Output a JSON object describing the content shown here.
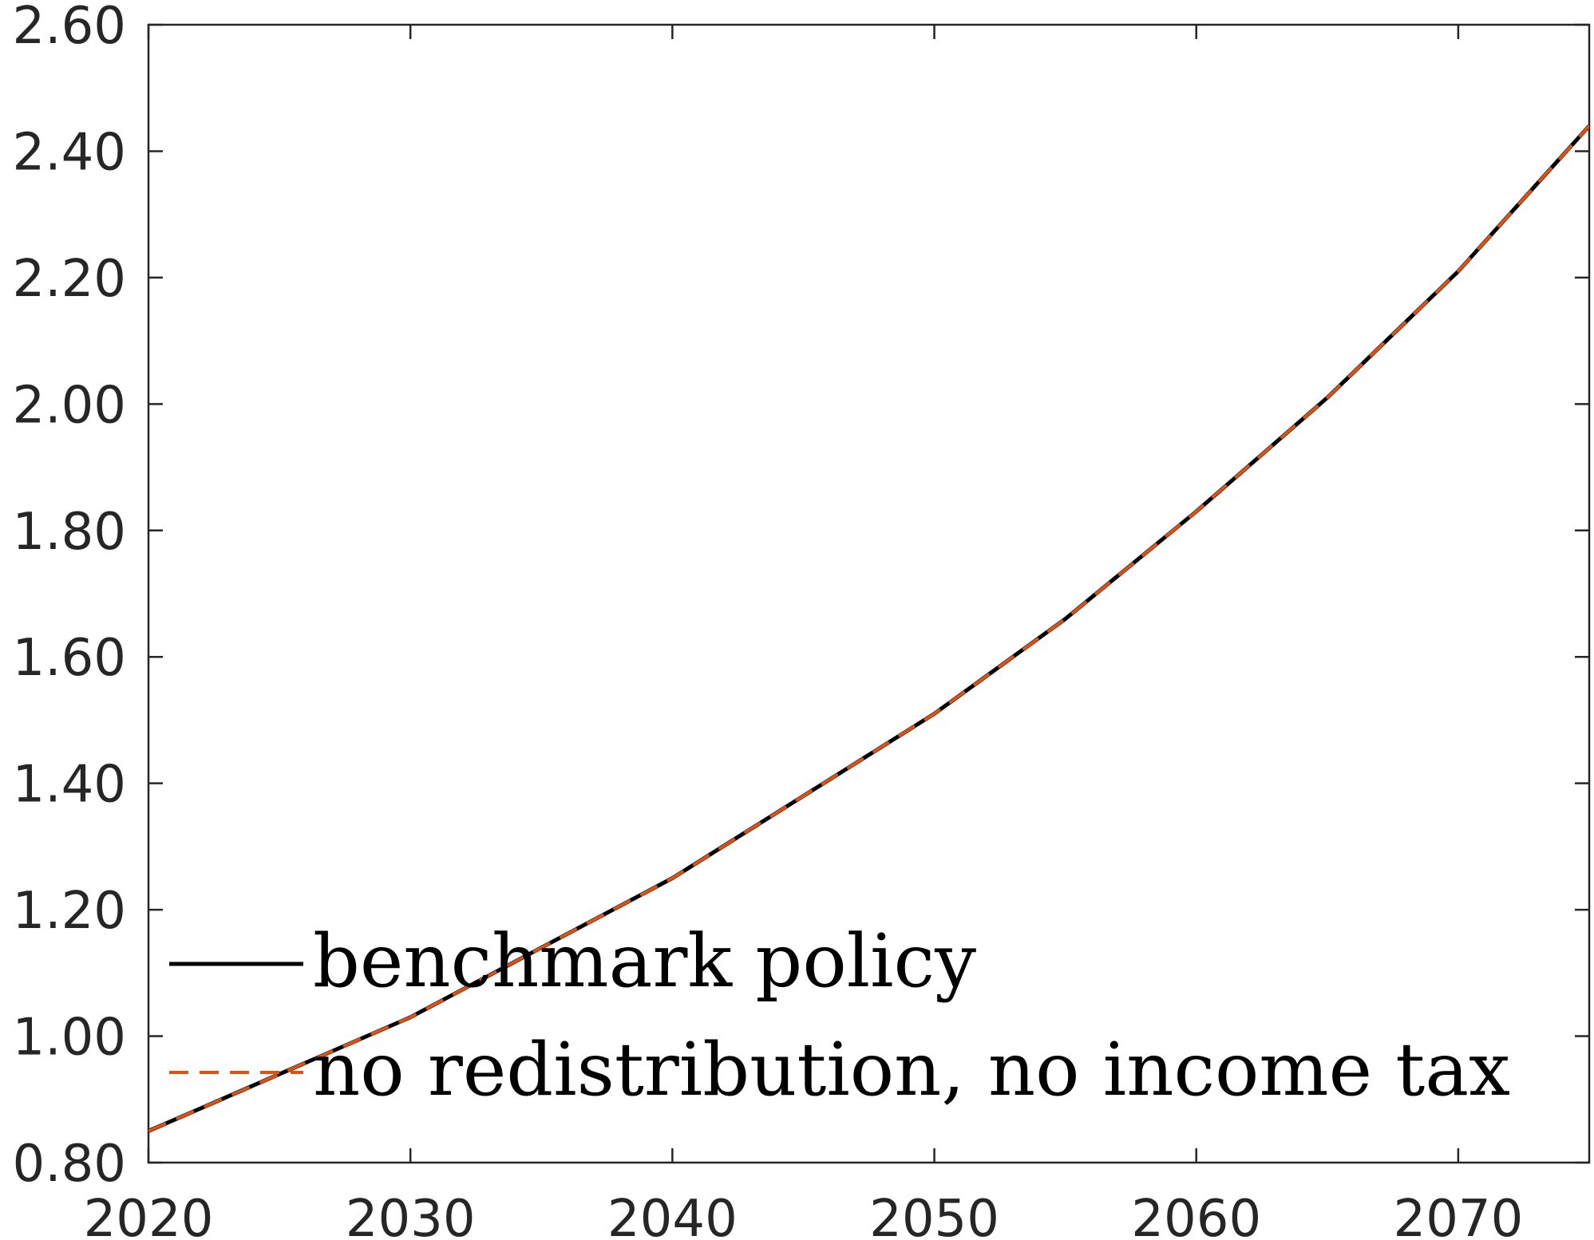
{
  "chart_data": {
    "type": "line",
    "title": "",
    "xlabel": "",
    "ylabel": "",
    "xlim": [
      2020,
      2075
    ],
    "ylim": [
      0.8,
      2.6
    ],
    "x_ticks": [
      "2020",
      "2030",
      "2040",
      "2050",
      "2060",
      "2070"
    ],
    "y_ticks": [
      "0.80",
      "1.00",
      "1.20",
      "1.40",
      "1.60",
      "1.80",
      "2.00",
      "2.20",
      "2.40",
      "2.60"
    ],
    "grid": false,
    "legend_position": "bottom-left",
    "x": [
      2020,
      2025,
      2030,
      2035,
      2040,
      2045,
      2050,
      2055,
      2060,
      2065,
      2070,
      2075
    ],
    "series": [
      {
        "name": "benchmark policy",
        "color": "#000000",
        "style": "solid",
        "values": [
          0.85,
          0.94,
          1.03,
          1.14,
          1.25,
          1.38,
          1.51,
          1.66,
          1.83,
          2.01,
          2.21,
          2.44
        ]
      },
      {
        "name": "no redistribution, no income tax",
        "color": "#D95319",
        "style": "dashed",
        "values": [
          0.85,
          0.94,
          1.03,
          1.14,
          1.25,
          1.38,
          1.51,
          1.66,
          1.83,
          2.01,
          2.21,
          2.44
        ]
      }
    ]
  }
}
